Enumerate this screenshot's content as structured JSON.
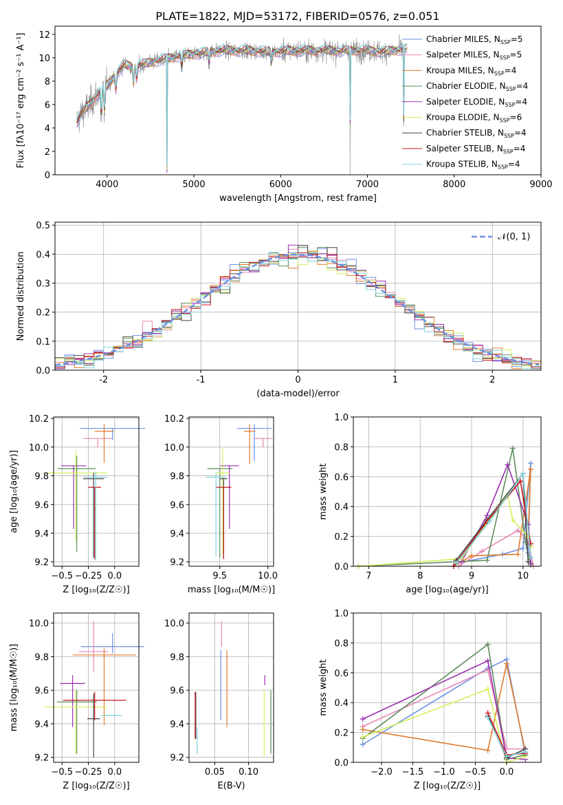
{
  "title": "PLATE=1822, MJD=53172, FIBERID=0576, z=0.051",
  "models": [
    {
      "name": "Chabrier MILES",
      "nssp": "5",
      "color": "#6b8fe0"
    },
    {
      "name": "Salpeter MILES",
      "nssp": "5",
      "color": "#e886b4"
    },
    {
      "name": "Kroupa MILES",
      "nssp": "4",
      "color": "#e07a2c"
    },
    {
      "name": "Chabrier ELODIE",
      "nssp": "4",
      "color": "#5e8d5e"
    },
    {
      "name": "Salpeter ELODIE",
      "nssp": "4",
      "color": "#9b2ead"
    },
    {
      "name": "Kroupa ELODIE",
      "nssp": "6",
      "color": "#d4ef5a"
    },
    {
      "name": "Chabrier STELIB",
      "nssp": "4",
      "color": "#444444"
    },
    {
      "name": "Salpeter STELIB",
      "nssp": "4",
      "color": "#c4161c"
    },
    {
      "name": "Kroupa STELIB",
      "nssp": "4",
      "color": "#7fd3dc"
    }
  ],
  "chart_data": [
    {
      "id": "spectrum",
      "type": "line",
      "xlabel": "wavelength [Angstrom, rest frame]",
      "ylabel": "Flux [fλ10⁻¹⁷ erg cm⁻² s⁻¹ A⁻¹]",
      "xlim": [
        3400,
        9000
      ],
      "ylim": [
        0,
        12.7
      ],
      "xticks": [
        4000,
        5000,
        6000,
        7000,
        8000,
        9000
      ],
      "yticks": [
        0,
        2,
        4,
        6,
        8,
        10,
        12
      ],
      "grid": false,
      "legend": "right",
      "observed_color": "#888888",
      "observed_range": [
        3650,
        7420
      ],
      "continuum": {
        "x": [
          3650,
          3700,
          3800,
          3900,
          4000,
          4100,
          4200,
          4300,
          4500,
          4800,
          5000,
          5300,
          5600,
          5900,
          6200,
          6500,
          6800,
          7000,
          7200,
          7400
        ],
        "y": [
          4.5,
          5.2,
          6.0,
          7.0,
          7.6,
          8.6,
          9.4,
          9.2,
          9.6,
          10.1,
          10.3,
          10.6,
          10.6,
          10.5,
          10.6,
          10.6,
          10.6,
          10.6,
          10.5,
          10.7
        ]
      },
      "absorption": [
        {
          "x": 3934,
          "depth": 2.6
        },
        {
          "x": 3969,
          "depth": 2.2
        },
        {
          "x": 4102,
          "depth": 1.5
        },
        {
          "x": 4304,
          "depth": 1.5
        },
        {
          "x": 4341,
          "depth": 1.2
        },
        {
          "x": 4690,
          "depth": 10.0
        },
        {
          "x": 4861,
          "depth": 1.2
        },
        {
          "x": 5175,
          "depth": 1.0
        },
        {
          "x": 5892,
          "depth": 1.0
        },
        {
          "x": 6800,
          "depth": 10.5
        },
        {
          "x": 7420,
          "depth": 10.6
        }
      ]
    },
    {
      "id": "residuals",
      "type": "histogram",
      "xlabel": "(data-model)/error",
      "ylabel": "Normed distribution",
      "xlim": [
        -2.5,
        2.5
      ],
      "ylim": [
        0,
        0.51
      ],
      "xticks": [
        -2,
        -1,
        0,
        1,
        2
      ],
      "yticks": [
        0.0,
        0.1,
        0.2,
        0.3,
        0.4,
        0.5
      ],
      "grid": true,
      "legend": "top-right",
      "bin_width": 0.1,
      "reference": {
        "label": "𝒩(0, 1)",
        "mu": 0,
        "sigma": 1,
        "color": "#6b8fe0"
      }
    },
    {
      "id": "age_vs_Z",
      "type": "errorbar",
      "xlabel": "Z [log₁₀(Z/Z☉)]",
      "ylabel": "age  [log₁₀(age/yr)]",
      "xlim": [
        -0.58,
        0.23
      ],
      "ylim": [
        9.17,
        10.21
      ],
      "xticks": [
        -0.5,
        -0.25,
        0.0
      ],
      "xticklabels": [
        "−0.5",
        "−0.25",
        "0.0"
      ],
      "yticks": [
        9.2,
        9.4,
        9.6,
        9.8,
        10.0,
        10.2
      ],
      "grid": true,
      "points": [
        {
          "x": -0.02,
          "y": 10.13,
          "xerr": 0.31,
          "yerr": [
            0.08,
            0.0
          ],
          "color": "#6b8fe0"
        },
        {
          "x": -0.16,
          "y": 10.06,
          "xerr": 0.14,
          "yerr": [
            0.06,
            0.0
          ],
          "color": "#e886b4"
        },
        {
          "x": -0.1,
          "y": 10.11,
          "xerr": 0.09,
          "yerr": [
            0.22,
            0.05
          ],
          "color": "#e07a2c"
        },
        {
          "x": -0.36,
          "y": 9.85,
          "xerr": 0.18,
          "yerr": [
            0.58,
            0.09
          ],
          "color": "#5e8d5e"
        },
        {
          "x": -0.39,
          "y": 9.87,
          "xerr": 0.12,
          "yerr": [
            0.44,
            0.0
          ],
          "color": "#9b2ead"
        },
        {
          "x": -0.37,
          "y": 9.82,
          "xerr": 0.3,
          "yerr": [
            0.48,
            0.16
          ],
          "color": "#d4ef5a"
        },
        {
          "x": -0.2,
          "y": 9.78,
          "xerr": 0.1,
          "yerr": [
            0.55,
            0.04
          ],
          "color": "#444444"
        },
        {
          "x": -0.19,
          "y": 9.72,
          "xerr": 0.06,
          "yerr": [
            0.5,
            0.0
          ],
          "color": "#c4161c"
        },
        {
          "x": -0.18,
          "y": 9.79,
          "xerr": 0.11,
          "yerr": [
            0.58,
            0.04
          ],
          "color": "#7fd3dc"
        }
      ]
    },
    {
      "id": "age_vs_mass",
      "type": "errorbar",
      "xlabel": "mass [log₁₀(M/M☉)]",
      "ylabel": "",
      "xlim": [
        9.18,
        10.06
      ],
      "ylim": [
        9.17,
        10.21
      ],
      "xticks": [
        9.5,
        10.0
      ],
      "xticklabels": [
        "9.5",
        "10.0"
      ],
      "yticks": [
        9.2,
        9.4,
        9.6,
        9.8,
        10.0,
        10.2
      ],
      "grid": true,
      "points": [
        {
          "x": 9.86,
          "y": 10.13,
          "xerr": 0.18,
          "yerr": [
            0.23,
            0.03
          ],
          "color": "#6b8fe0"
        },
        {
          "x": 9.95,
          "y": 10.06,
          "xerr": 0.1,
          "yerr": [
            0.06,
            0.0
          ],
          "color": "#e886b4"
        },
        {
          "x": 9.81,
          "y": 10.11,
          "xerr": 0.06,
          "yerr": [
            0.23,
            0.05
          ],
          "color": "#e07a2c"
        },
        {
          "x": 9.5,
          "y": 9.85,
          "xerr": 0.13,
          "yerr": [
            0.62,
            0.0
          ],
          "color": "#5e8d5e"
        },
        {
          "x": 9.6,
          "y": 9.87,
          "xerr": 0.1,
          "yerr": [
            0.44,
            0.0
          ],
          "color": "#9b2ead"
        },
        {
          "x": 9.53,
          "y": 9.82,
          "xerr": 0.07,
          "yerr": [
            0.56,
            0.17
          ],
          "color": "#d4ef5a"
        },
        {
          "x": 9.54,
          "y": 9.78,
          "xerr": 0.04,
          "yerr": [
            0.56,
            0.0
          ],
          "color": "#444444"
        },
        {
          "x": 9.54,
          "y": 9.72,
          "xerr": 0.08,
          "yerr": [
            0.5,
            0.0
          ],
          "color": "#c4161c"
        },
        {
          "x": 9.46,
          "y": 9.79,
          "xerr": 0.1,
          "yerr": [
            0.55,
            0.03
          ],
          "color": "#7fd3dc"
        }
      ]
    },
    {
      "id": "mass_weight_vs_age",
      "type": "line",
      "xlabel": "age  [log₁₀(age/yr)]",
      "ylabel": "mass weight",
      "xlim": [
        6.7,
        10.35
      ],
      "ylim": [
        0,
        1.0
      ],
      "xticks": [
        7,
        8,
        9,
        10
      ],
      "xticklabels": [
        "7",
        "8",
        "9",
        "10"
      ],
      "yticks": [
        0.0,
        0.2,
        0.4,
        0.6,
        0.8,
        1.0
      ],
      "grid": true,
      "series": [
        {
          "color": "#6b8fe0",
          "x": [
            8.7,
            9.6,
            10.0,
            10.15,
            10.1
          ],
          "y": [
            0.02,
            0.08,
            0.12,
            0.69,
            0.09
          ]
        },
        {
          "color": "#e886b4",
          "x": [
            8.75,
            9.2,
            9.9,
            10.1,
            10.2
          ],
          "y": [
            0.0,
            0.1,
            0.24,
            0.17,
            0.0
          ]
        },
        {
          "color": "#e07a2c",
          "x": [
            8.65,
            9.0,
            9.9,
            10.15,
            10.1
          ],
          "y": [
            0.0,
            0.07,
            0.08,
            0.65,
            0.2
          ]
        },
        {
          "color": "#5e8d5e",
          "x": [
            6.8,
            9.3,
            9.8,
            10.05,
            10.15
          ],
          "y": [
            0.0,
            0.04,
            0.79,
            0.16,
            0.01
          ]
        },
        {
          "color": "#9b2ead",
          "x": [
            8.8,
            9.3,
            9.7,
            10.1,
            10.15
          ],
          "y": [
            0.03,
            0.34,
            0.68,
            0.28,
            0.02
          ]
        },
        {
          "color": "#d4ef5a",
          "x": [
            6.8,
            8.8,
            9.7,
            9.8,
            10.1,
            10.15
          ],
          "y": [
            0.0,
            0.05,
            0.48,
            0.31,
            0.2,
            0.13
          ]
        },
        {
          "color": "#444444",
          "x": [
            8.7,
            9.3,
            10.0,
            10.1
          ],
          "y": [
            0.04,
            0.31,
            0.62,
            0.03
          ]
        },
        {
          "color": "#c4161c",
          "x": [
            8.65,
            9.3,
            9.95,
            10.15
          ],
          "y": [
            0.0,
            0.3,
            0.57,
            0.15
          ]
        },
        {
          "color": "#7fd3dc",
          "x": [
            8.7,
            9.35,
            10.0,
            10.15
          ],
          "y": [
            0.02,
            0.3,
            0.62,
            0.06
          ]
        }
      ]
    },
    {
      "id": "mass_vs_Z",
      "type": "errorbar",
      "xlabel": "Z [log₁₀(Z/Z☉)]",
      "ylabel": "mass [log₁₀(M/M☉)]",
      "xlim": [
        -0.58,
        0.23
      ],
      "ylim": [
        9.17,
        10.06
      ],
      "xticks": [
        -0.5,
        -0.25,
        0.0
      ],
      "xticklabels": [
        "−0.5",
        "−0.25",
        "0.0"
      ],
      "yticks": [
        9.2,
        9.4,
        9.6,
        9.8,
        10.0
      ],
      "grid": true,
      "points": [
        {
          "x": -0.02,
          "y": 9.86,
          "xerr": 0.3,
          "yerr": [
            0.04,
            0.08
          ],
          "color": "#6b8fe0"
        },
        {
          "x": -0.2,
          "y": 9.83,
          "xerr": 0.14,
          "yerr": [
            0.12,
            0.18
          ],
          "color": "#e886b4"
        },
        {
          "x": -0.1,
          "y": 9.81,
          "xerr": 0.3,
          "yerr": [
            0.42,
            0.04
          ],
          "color": "#e07a2c"
        },
        {
          "x": -0.36,
          "y": 9.53,
          "xerr": 0.19,
          "yerr": [
            0.31,
            0.07
          ],
          "color": "#5e8d5e"
        },
        {
          "x": -0.4,
          "y": 9.64,
          "xerr": 0.12,
          "yerr": [
            0.26,
            0.05
          ],
          "color": "#9b2ead"
        },
        {
          "x": -0.37,
          "y": 9.5,
          "xerr": 0.3,
          "yerr": [
            0.28,
            0.1
          ],
          "color": "#d4ef5a"
        },
        {
          "x": -0.2,
          "y": 9.43,
          "xerr": 0.06,
          "yerr": [
            0.23,
            0.15
          ],
          "color": "#444444"
        },
        {
          "x": -0.19,
          "y": 9.54,
          "xerr": 0.3,
          "yerr": [
            0.12,
            0.05
          ],
          "color": "#c4161c"
        },
        {
          "x": -0.03,
          "y": 9.45,
          "xerr": 0.1,
          "yerr": [
            0.0,
            0.0
          ],
          "color": "#7fd3dc"
        }
      ]
    },
    {
      "id": "mass_vs_ebv",
      "type": "errorbar",
      "xlabel": "E(B-V)",
      "ylabel": "",
      "xlim": [
        0.012,
        0.137
      ],
      "ylim": [
        9.17,
        10.06
      ],
      "xticks": [
        0.05,
        0.1
      ],
      "xticklabels": [
        "0.05",
        "0.10"
      ],
      "yticks": [
        9.2,
        9.4,
        9.6,
        9.8,
        10.0
      ],
      "grid": true,
      "points": [
        {
          "x": 0.059,
          "y": 9.7,
          "xerr": 0,
          "yerr": [
            0.28,
            0.14
          ],
          "color": "#6b8fe0"
        },
        {
          "x": 0.06,
          "y": 9.86,
          "xerr": 0,
          "yerr": [
            0.0,
            0.15
          ],
          "color": "#e886b4"
        },
        {
          "x": 0.068,
          "y": 9.8,
          "xerr": 0,
          "yerr": [
            0.42,
            0.04
          ],
          "color": "#e07a2c"
        },
        {
          "x": 0.133,
          "y": 9.4,
          "xerr": 0,
          "yerr": [
            0.18,
            0.2
          ],
          "color": "#5e8d5e"
        },
        {
          "x": 0.124,
          "y": 9.66,
          "xerr": 0,
          "yerr": [
            0.03,
            0.03
          ],
          "color": "#9b2ead"
        },
        {
          "x": 0.123,
          "y": 9.4,
          "xerr": 0,
          "yerr": [
            0.2,
            0.2
          ],
          "color": "#d4ef5a"
        },
        {
          "x": 0.022,
          "y": 9.45,
          "xerr": 0,
          "yerr": [
            0.14,
            0.14
          ],
          "color": "#444444"
        },
        {
          "x": 0.021,
          "y": 9.45,
          "xerr": 0,
          "yerr": [
            0.14,
            0.14
          ],
          "color": "#c4161c"
        },
        {
          "x": 0.024,
          "y": 9.3,
          "xerr": 0,
          "yerr": [
            0.08,
            0.08
          ],
          "color": "#7fd3dc"
        }
      ]
    },
    {
      "id": "mass_weight_vs_Z",
      "type": "line",
      "xlabel": "Z [log₁₀(Z/Z☉)]",
      "ylabel": "mass weight",
      "xlim": [
        -2.45,
        0.55
      ],
      "ylim": [
        0,
        1.0
      ],
      "xticks": [
        -2.0,
        -1.5,
        -1.0,
        -0.5,
        0.0
      ],
      "xticklabels": [
        "−2.0",
        "−1.5",
        "−1.0",
        "−0.5",
        "0.0"
      ],
      "yticks": [
        0.0,
        0.2,
        0.4,
        0.6,
        0.8,
        1.0
      ],
      "grid": true,
      "series": [
        {
          "color": "#6b8fe0",
          "x": [
            -2.3,
            -0.3,
            0.0,
            0.3,
            0.3
          ],
          "y": [
            0.12,
            0.63,
            0.69,
            0.05,
            0.09
          ]
        },
        {
          "color": "#e886b4",
          "x": [
            -2.3,
            -0.3,
            0.0,
            0.3
          ],
          "y": [
            0.24,
            0.62,
            0.09,
            0.09
          ]
        },
        {
          "color": "#e07a2c",
          "x": [
            -2.3,
            -0.3,
            0.0,
            0.3
          ],
          "y": [
            0.22,
            0.08,
            0.66,
            0.07
          ]
        },
        {
          "color": "#5e8d5e",
          "x": [
            -2.3,
            -0.3,
            0.0,
            0.3
          ],
          "y": [
            0.16,
            0.79,
            0.02,
            0.05
          ]
        },
        {
          "color": "#9b2ead",
          "x": [
            -2.3,
            -0.3,
            0.0,
            0.3
          ],
          "y": [
            0.29,
            0.68,
            0.03,
            0.02
          ]
        },
        {
          "color": "#d4ef5a",
          "x": [
            -2.3,
            -0.3,
            0.0,
            0.3
          ],
          "y": [
            0.17,
            0.49,
            0.0,
            0.04
          ]
        },
        {
          "color": "#444444",
          "x": [
            -0.3,
            0.0,
            0.3
          ],
          "y": [
            0.31,
            0.03,
            0.09
          ]
        },
        {
          "color": "#c4161c",
          "x": [
            -0.3,
            0.0,
            0.3
          ],
          "y": [
            0.33,
            0.05,
            0.06
          ]
        },
        {
          "color": "#7fd3dc",
          "x": [
            -0.3,
            0.0,
            0.3
          ],
          "y": [
            0.3,
            0.04,
            0.07
          ]
        }
      ]
    }
  ]
}
